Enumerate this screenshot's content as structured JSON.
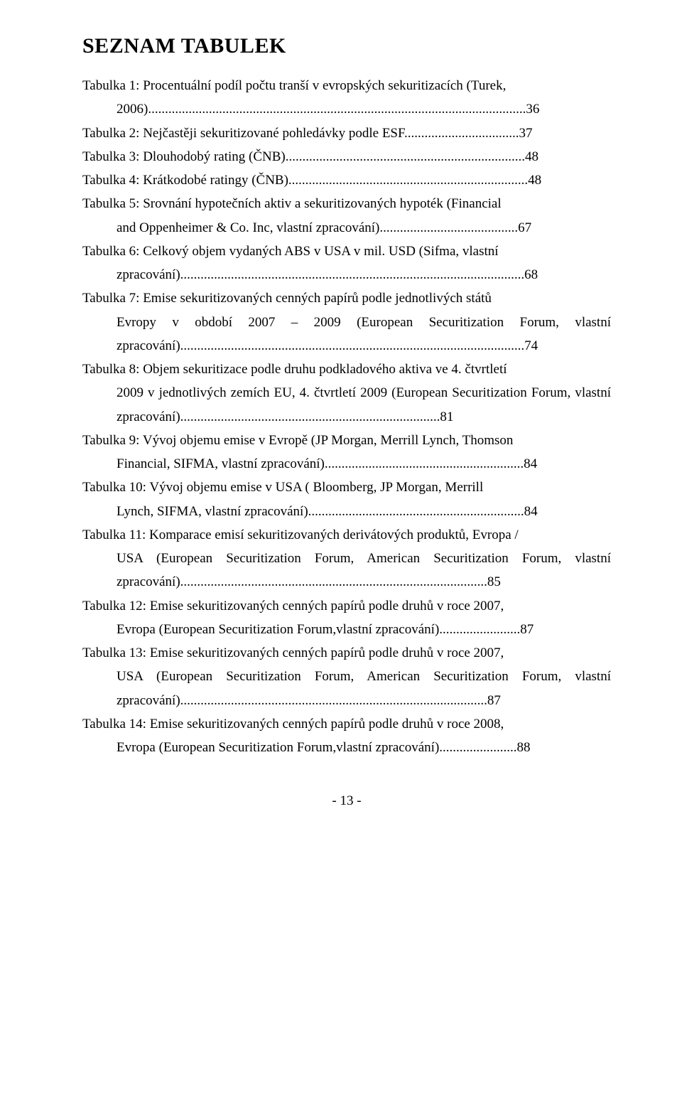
{
  "heading": "SEZNAM TABULEK",
  "entries": [
    {
      "first": "Tabulka 1: Procentuální podíl počtu tranší v evropských sekuritizacích (Turek,",
      "cont": "2006)................................................................................................................36"
    },
    {
      "first": "Tabulka 2: Nejčastěji sekuritizované pohledávky podle ESF..................................37",
      "cont": ""
    },
    {
      "first": "Tabulka 3: Dlouhodobý rating (ČNB).......................................................................48",
      "cont": ""
    },
    {
      "first": "Tabulka 4: Krátkodobé ratingy (ČNB).......................................................................48",
      "cont": ""
    },
    {
      "first": "Tabulka 5: Srovnání hypotečních aktiv a sekuritizovaných hypoték (Financial",
      "cont": "and Oppenheimer & Co. Inc, vlastní zpracování).........................................67"
    },
    {
      "first": "Tabulka 6: Celkový objem vydaných ABS v USA v mil. USD (Sifma, vlastní",
      "cont": "zpracování)......................................................................................................68"
    },
    {
      "first": "Tabulka 7: Emise sekuritizovaných cenných papírů podle jednotlivých států",
      "cont": "Evropy  v období 2007 – 2009 (European Securitization Forum, vlastní zpracování)......................................................................................................74"
    },
    {
      "first": "Tabulka 8: Objem sekuritizace podle druhu podkladového aktiva ve 4. čtvrtletí",
      "cont": "2009 v jednotlivých zemích EU, 4. čtvrtletí 2009 (European Securitization Forum, vlastní zpracování).............................................................................81"
    },
    {
      "first": "Tabulka 9: Vývoj objemu emise v Evropě (JP Morgan, Merrill Lynch, Thomson",
      "cont": "Financial, SIFMA, vlastní zpracování)...........................................................84"
    },
    {
      "first": "Tabulka 10: Vývoj objemu emise v USA ( Bloomberg, JP Morgan, Merrill",
      "cont": "Lynch, SIFMA, vlastní zpracování)................................................................84"
    },
    {
      "first": "Tabulka 11: Komparace emisí  sekuritizovaných derivátových produktů, Evropa /",
      "cont": "USA (European Securitization Forum, American Securitization Forum, vlastní zpracování)...........................................................................................85"
    },
    {
      "first": "Tabulka 12: Emise sekuritizovaných cenných papírů podle druhů v roce 2007,",
      "cont": "Evropa (European Securitization Forum,vlastní zpracování)........................87"
    },
    {
      "first": "Tabulka 13: Emise sekuritizovaných cenných papírů podle druhů v roce 2007,",
      "cont": "USA (European Securitization Forum, American Securitization Forum, vlastní zpracování)...........................................................................................87"
    },
    {
      "first": "Tabulka 14: Emise sekuritizovaných cenných papírů podle druhů v roce 2008,",
      "cont": "Evropa  (European Securitization Forum,vlastní zpracování).......................88"
    }
  ],
  "page_number": "- 13 -"
}
